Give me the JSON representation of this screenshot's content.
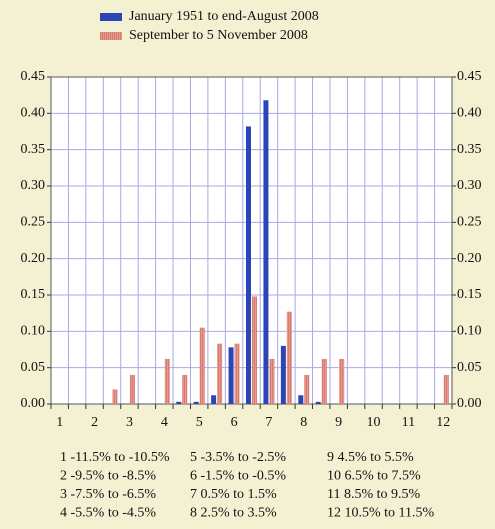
{
  "chart_data": {
    "type": "bar",
    "categories": [
      "1",
      null,
      "2",
      null,
      "3",
      null,
      "4",
      null,
      "5",
      null,
      "6",
      null,
      "7",
      null,
      "8",
      null,
      "9",
      null,
      "10",
      null,
      "11",
      null,
      "12"
    ],
    "series": [
      {
        "name": "January 1951 to end-August 2008",
        "color": "#2b45b8",
        "values": [
          0,
          0,
          0,
          0,
          0,
          0,
          0,
          0.003,
          0.003,
          0.012,
          0.078,
          0.382,
          0.418,
          0.08,
          0.012,
          0.003,
          0,
          0,
          0,
          0,
          0,
          0,
          0
        ]
      },
      {
        "name": "September to 5 November 2008",
        "color": "#e39a8c",
        "values": [
          0,
          0,
          0,
          0.02,
          0.04,
          0,
          0.062,
          0.04,
          0.105,
          0.083,
          0.083,
          0.148,
          0.062,
          0.127,
          0.04,
          0.062,
          0.062,
          0,
          0,
          0,
          0,
          0,
          0.04
        ]
      }
    ],
    "ylim": [
      0,
      0.45
    ],
    "yticks": [
      {
        "value": 0,
        "label": "0.00"
      },
      {
        "value": 0.05,
        "label": "0.05"
      },
      {
        "value": 0.1,
        "label": "0.10"
      },
      {
        "value": 0.15,
        "label": "0.15"
      },
      {
        "value": 0.2,
        "label": "0.20"
      },
      {
        "value": 0.25,
        "label": "0.25"
      },
      {
        "value": 0.3,
        "label": "0.30"
      },
      {
        "value": 0.35,
        "label": "0.35"
      },
      {
        "value": 0.4,
        "label": "0.40"
      },
      {
        "value": 0.45,
        "label": "0.45"
      }
    ],
    "y2lim": [
      0,
      0.45
    ],
    "y2ticks": [
      {
        "value": 0,
        "label": "0.00"
      },
      {
        "value": 0.05,
        "label": "0.05"
      },
      {
        "value": 0.1,
        "label": "0.10"
      },
      {
        "value": 0.15,
        "label": "0.15"
      },
      {
        "value": 0.2,
        "label": "0.20"
      },
      {
        "value": 0.25,
        "label": "0.25"
      },
      {
        "value": 0.3,
        "label": "0.30"
      },
      {
        "value": 0.35,
        "label": "0.35"
      },
      {
        "value": 0.4,
        "label": "0.40"
      },
      {
        "value": 0.45,
        "label": "0.45"
      }
    ],
    "grid": true,
    "legend": "top",
    "bin_key": [
      "1 -11.5% to -10.5%",
      "2 -9.5% to -8.5%",
      "3 -7.5% to -6.5%",
      "4 -5.5% to -4.5%",
      "5 -3.5% to -2.5%",
      "6 -1.5% to -0.5%",
      "7 0.5% to 1.5%",
      "8 2.5% to 3.5%",
      "9 4.5% to 5.5%",
      "10 6.5% to 7.5%",
      "11 8.5% to 9.5%",
      "12 10.5% to 11.5%"
    ]
  }
}
